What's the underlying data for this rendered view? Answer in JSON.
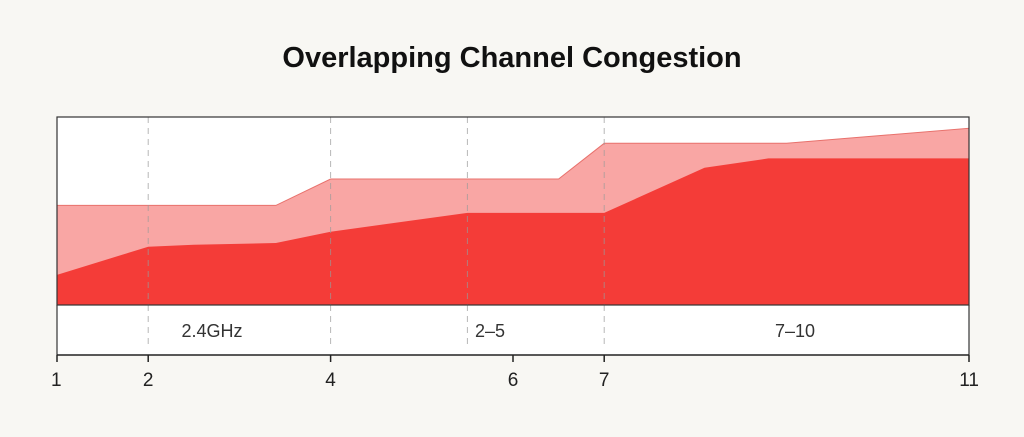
{
  "chart_data": {
    "type": "area",
    "title": "Overlapping Channel Congestion",
    "xlabel": "",
    "ylabel": "",
    "xlim": [
      1,
      11
    ],
    "ylim": [
      0,
      1
    ],
    "x_ticks": [
      1,
      2,
      4,
      6,
      7,
      11
    ],
    "x_tick_labels": [
      "1",
      "2",
      "4",
      "6",
      "7",
      "11"
    ],
    "grid": "dashed vertical lines at x = 2, 4, 5.5, 7",
    "series": [
      {
        "color": "#f9a6a4",
        "points": [
          [
            1,
            0.53
          ],
          [
            2.3,
            0.53
          ],
          [
            3.4,
            0.53
          ],
          [
            4,
            0.67
          ],
          [
            5.5,
            0.67
          ],
          [
            6.5,
            0.67
          ],
          [
            7,
            0.86
          ],
          [
            9,
            0.86
          ],
          [
            11,
            0.94
          ]
        ]
      },
      {
        "color": "#f43c38",
        "points": [
          [
            1,
            0.16
          ],
          [
            2,
            0.31
          ],
          [
            2.5,
            0.32
          ],
          [
            3.4,
            0.33
          ],
          [
            4,
            0.39
          ],
          [
            5.5,
            0.49
          ],
          [
            7,
            0.49
          ],
          [
            8.1,
            0.73
          ],
          [
            8.8,
            0.78
          ],
          [
            11,
            0.78
          ]
        ]
      }
    ],
    "bands": [
      {
        "label": "2.4GHz",
        "from": 1,
        "to": 4
      },
      {
        "label": "2–5",
        "from": 4,
        "to": 7
      },
      {
        "label": "7–10",
        "from": 7,
        "to": 11
      }
    ],
    "legend": "none"
  }
}
